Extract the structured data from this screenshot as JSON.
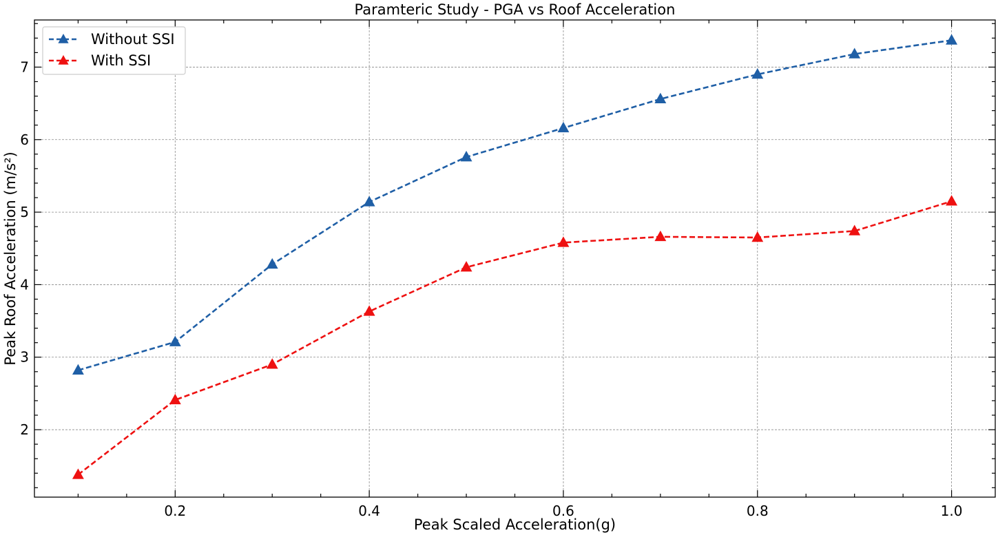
{
  "chart_data": {
    "type": "line",
    "title": "Paramteric Study - PGA vs Roof Acceleration",
    "xlabel": "Peak Scaled Acceleration(g)",
    "ylabel": "Peak Roof Acceleration (m/s²)",
    "xlim": [
      0.055,
      1.045
    ],
    "ylim": [
      1.07,
      7.65
    ],
    "x_ticks": [
      0.2,
      0.4,
      0.6,
      0.8,
      1.0
    ],
    "x_tick_labels": [
      "0.2",
      "0.4",
      "0.6",
      "0.8",
      "1.0"
    ],
    "x_minor_ticks": [
      0.1,
      0.15,
      0.25,
      0.3,
      0.35,
      0.45,
      0.5,
      0.55,
      0.65,
      0.7,
      0.75,
      0.85,
      0.9,
      0.95
    ],
    "y_ticks": [
      2,
      3,
      4,
      5,
      6,
      7
    ],
    "y_tick_labels": [
      "2",
      "3",
      "4",
      "5",
      "6",
      "7"
    ],
    "y_minor_ticks": [
      1.2,
      1.4,
      1.6,
      1.8,
      2.2,
      2.4,
      2.6,
      2.8,
      3.2,
      3.4,
      3.6,
      3.8,
      4.2,
      4.4,
      4.6,
      4.8,
      5.2,
      5.4,
      5.6,
      5.8,
      6.2,
      6.4,
      6.6,
      6.8,
      7.2,
      7.4,
      7.6
    ],
    "grid": true,
    "legend_position": "top-left",
    "x": [
      0.1,
      0.2,
      0.3,
      0.4,
      0.5,
      0.6,
      0.7,
      0.8,
      0.9,
      1.0
    ],
    "series": [
      {
        "name": "Without SSI",
        "color": "#1f5fa6",
        "line_style": "dashed",
        "marker": "triangle-up-icon",
        "values": [
          2.82,
          3.21,
          4.28,
          5.14,
          5.76,
          6.16,
          6.56,
          6.9,
          7.18,
          7.37
        ]
      },
      {
        "name": "With SSI",
        "color": "#ee1111",
        "line_style": "dashed",
        "marker": "triangle-up-icon",
        "values": [
          1.38,
          2.41,
          2.9,
          3.63,
          4.24,
          4.58,
          4.66,
          4.65,
          4.74,
          5.15
        ]
      }
    ]
  }
}
